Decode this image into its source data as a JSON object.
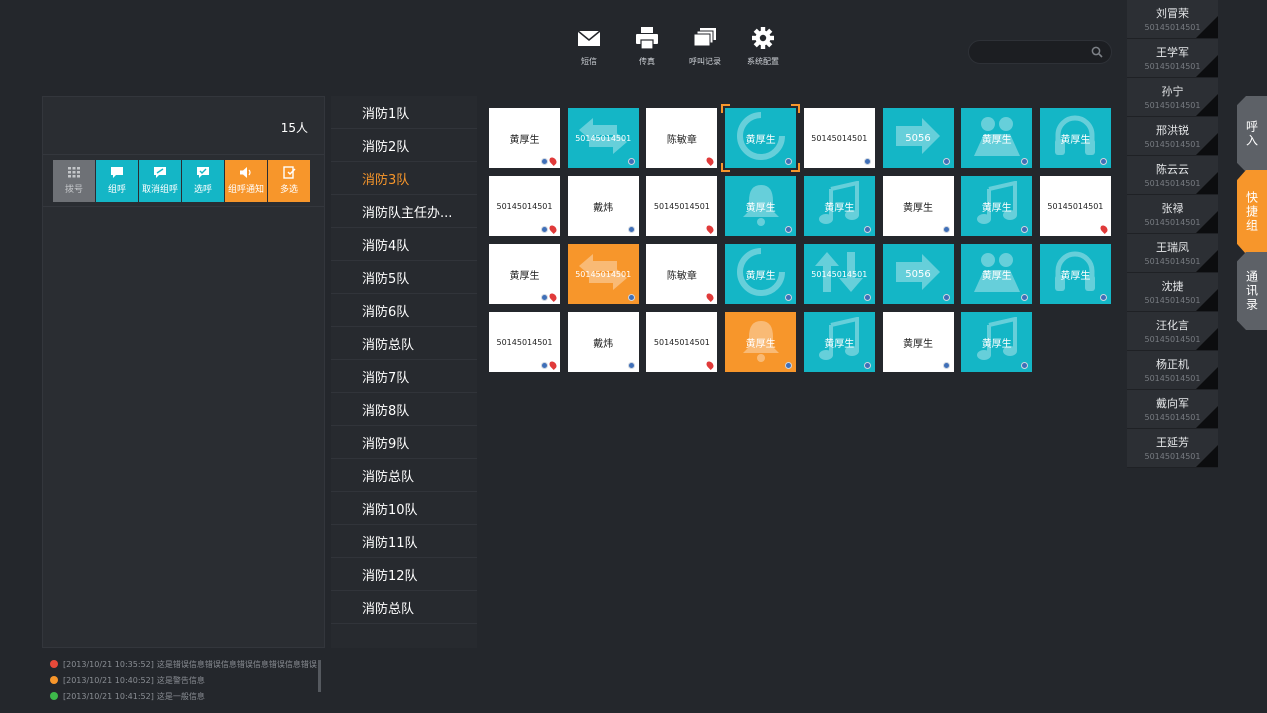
{
  "toolbar": {
    "items": [
      {
        "label": "短信",
        "icon": "mail-icon"
      },
      {
        "label": "传真",
        "icon": "printer-icon"
      },
      {
        "label": "呼叫记录",
        "icon": "call-log-icon"
      },
      {
        "label": "系统配置",
        "icon": "gear-icon"
      }
    ]
  },
  "search": {
    "placeholder": ""
  },
  "left_panel": {
    "count": "15人",
    "actions": [
      {
        "label": "拨号",
        "color": "gray",
        "icon": "dialpad-icon"
      },
      {
        "label": "组呼",
        "color": "teal",
        "icon": "group-call-icon"
      },
      {
        "label": "取消组呼",
        "color": "teal",
        "icon": "cancel-group-call-icon"
      },
      {
        "label": "选呼",
        "color": "teal",
        "icon": "select-call-icon"
      },
      {
        "label": "组呼通知",
        "color": "orange",
        "icon": "speaker-icon"
      },
      {
        "label": "多选",
        "color": "orange",
        "icon": "multi-select-icon"
      }
    ]
  },
  "teams": [
    {
      "label": "消防1队"
    },
    {
      "label": "消防2队"
    },
    {
      "label": "消防3队",
      "active": true
    },
    {
      "label": "消防队主任办..."
    },
    {
      "label": "消防4队"
    },
    {
      "label": "消防5队"
    },
    {
      "label": "消防6队"
    },
    {
      "label": "消防总队"
    },
    {
      "label": "消防7队"
    },
    {
      "label": "消防8队"
    },
    {
      "label": "消防9队"
    },
    {
      "label": "消防总队"
    },
    {
      "label": "消防10队"
    },
    {
      "label": "消防11队"
    },
    {
      "label": "消防12队"
    },
    {
      "label": "消防总队"
    }
  ],
  "tiles": [
    {
      "text": "黄厚生",
      "color": "white",
      "kind": "name",
      "icon": "none",
      "ind": [
        "dot",
        "pin"
      ]
    },
    {
      "text": "50145014501",
      "color": "teal",
      "kind": "num",
      "icon": "transfer-icon",
      "ind": [
        "dot"
      ]
    },
    {
      "text": "陈敏章",
      "color": "white",
      "kind": "name",
      "icon": "none",
      "ind": [
        "pin"
      ]
    },
    {
      "text": "黄厚生",
      "color": "teal",
      "kind": "name",
      "icon": "loading-icon",
      "ind": [
        "dot"
      ],
      "selected": true
    },
    {
      "text": "50145014501",
      "color": "white",
      "kind": "num",
      "icon": "none",
      "ind": [
        "dot"
      ]
    },
    {
      "text": "5056",
      "color": "teal",
      "kind": "name",
      "icon": "forward-icon",
      "ind": [
        "dot"
      ]
    },
    {
      "text": "黄厚生",
      "color": "teal",
      "kind": "name",
      "icon": "meeting-icon",
      "ind": [
        "dot"
      ]
    },
    {
      "text": "黄厚生",
      "color": "teal",
      "kind": "name",
      "icon": "headset-icon",
      "ind": [
        "dot"
      ]
    },
    {
      "text": "50145014501",
      "color": "white",
      "kind": "num",
      "icon": "none",
      "ind": [
        "dot",
        "pin"
      ]
    },
    {
      "text": "戴炜",
      "color": "white",
      "kind": "name",
      "icon": "none",
      "ind": [
        "dot"
      ]
    },
    {
      "text": "50145014501",
      "color": "white",
      "kind": "num",
      "icon": "none",
      "ind": [
        "pin"
      ]
    },
    {
      "text": "黄厚生",
      "color": "teal",
      "kind": "name",
      "icon": "bell-icon",
      "ind": [
        "dot"
      ]
    },
    {
      "text": "黄厚生",
      "color": "teal",
      "kind": "name",
      "icon": "music-icon",
      "ind": [
        "dot"
      ]
    },
    {
      "text": "黄厚生",
      "color": "white",
      "kind": "name",
      "icon": "none",
      "ind": [
        "dot"
      ]
    },
    {
      "text": "黄厚生",
      "color": "teal",
      "kind": "name",
      "icon": "music-icon",
      "ind": [
        "dot"
      ]
    },
    {
      "text": "50145014501",
      "color": "white",
      "kind": "num",
      "icon": "none",
      "ind": [
        "pin"
      ]
    },
    {
      "text": "黄厚生",
      "color": "white",
      "kind": "name",
      "icon": "none",
      "ind": [
        "dot",
        "pin"
      ]
    },
    {
      "text": "50145014501",
      "color": "orange",
      "kind": "num",
      "icon": "transfer-icon",
      "ind": [
        "dot"
      ]
    },
    {
      "text": "陈敏章",
      "color": "white",
      "kind": "name",
      "icon": "none",
      "ind": [
        "pin"
      ]
    },
    {
      "text": "黄厚生",
      "color": "teal",
      "kind": "name",
      "icon": "loading-icon",
      "ind": [
        "dot"
      ]
    },
    {
      "text": "50145014501",
      "color": "teal",
      "kind": "num",
      "icon": "updown-icon",
      "ind": [
        "dot"
      ]
    },
    {
      "text": "5056",
      "color": "teal",
      "kind": "name",
      "icon": "forward-icon",
      "ind": [
        "dot"
      ]
    },
    {
      "text": "黄厚生",
      "color": "teal",
      "kind": "name",
      "icon": "meeting-icon",
      "ind": [
        "dot"
      ]
    },
    {
      "text": "黄厚生",
      "color": "teal",
      "kind": "name",
      "icon": "headset-icon",
      "ind": [
        "dot"
      ]
    },
    {
      "text": "50145014501",
      "color": "white",
      "kind": "num",
      "icon": "none",
      "ind": [
        "dot",
        "pin"
      ]
    },
    {
      "text": "戴炜",
      "color": "white",
      "kind": "name",
      "icon": "none",
      "ind": [
        "dot"
      ]
    },
    {
      "text": "50145014501",
      "color": "white",
      "kind": "num",
      "icon": "none",
      "ind": [
        "pin"
      ]
    },
    {
      "text": "黄厚生",
      "color": "orange",
      "kind": "name",
      "icon": "bell-icon",
      "ind": [
        "dot"
      ]
    },
    {
      "text": "黄厚生",
      "color": "teal",
      "kind": "name",
      "icon": "music-icon",
      "ind": [
        "dot"
      ]
    },
    {
      "text": "黄厚生",
      "color": "white",
      "kind": "name",
      "icon": "none",
      "ind": [
        "dot"
      ]
    },
    {
      "text": "黄厚生",
      "color": "teal",
      "kind": "name",
      "icon": "music-icon",
      "ind": [
        "dot"
      ]
    }
  ],
  "contacts": [
    {
      "name": "刘冒荣",
      "number": "50145014501"
    },
    {
      "name": "王学军",
      "number": "50145014501"
    },
    {
      "name": "孙宁",
      "number": "50145014501"
    },
    {
      "name": "邢洪锐",
      "number": "50145014501"
    },
    {
      "name": "陈云云",
      "number": "50145014501"
    },
    {
      "name": "张禄",
      "number": "50145014501"
    },
    {
      "name": "王瑞凤",
      "number": "50145014501"
    },
    {
      "name": "沈捷",
      "number": "50145014501"
    },
    {
      "name": "汪化言",
      "number": "50145014501"
    },
    {
      "name": "杨正机",
      "number": "50145014501"
    },
    {
      "name": "戴向军",
      "number": "50145014501"
    },
    {
      "name": "王延芳",
      "number": "50145014501"
    }
  ],
  "side_tabs": [
    {
      "label": "呼入"
    },
    {
      "label": "快捷组"
    },
    {
      "label": "通讯录"
    }
  ],
  "log": [
    {
      "time": "[2013/10/21 10:35:52]",
      "text": "这是错误信息错误信息错误信息错误信息错误",
      "level": "error",
      "color": "#e84a3a"
    },
    {
      "time": "[2013/10/21 10:40:52]",
      "text": "这是警告信息",
      "level": "warning",
      "color": "#f7962b"
    },
    {
      "time": "[2013/10/21 10:41:52]",
      "text": "这是一般信息",
      "level": "info",
      "color": "#3db84a"
    }
  ],
  "colors": {
    "teal": "#14b6c6",
    "orange": "#f7962b",
    "background": "#24272c"
  }
}
